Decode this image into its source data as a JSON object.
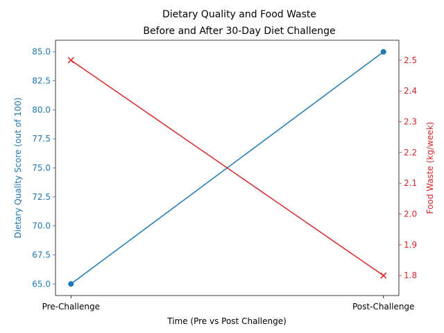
{
  "chart_data": {
    "type": "line",
    "title": "Dietary Quality and Food Waste",
    "subtitle": "Before and After 30-Day Diet Challenge",
    "xlabel": "Time (Pre vs Post Challenge)",
    "categories": [
      "Pre-Challenge",
      "Post-Challenge"
    ],
    "y_left": {
      "label": "Dietary Quality Score (out of 100)",
      "color": "#1f77b4",
      "ylim": [
        64.0,
        86.0
      ],
      "ticks": [
        "65.0",
        "67.5",
        "70.0",
        "72.5",
        "75.0",
        "77.5",
        "80.0",
        "82.5",
        "85.0"
      ]
    },
    "y_right": {
      "label": "Food Waste (kg/week)",
      "color": "#d62728",
      "ylim": [
        1.735,
        2.565
      ],
      "ticks": [
        "1.8",
        "1.9",
        "2.0",
        "2.1",
        "2.2",
        "2.3",
        "2.4",
        "2.5"
      ]
    },
    "series": [
      {
        "values": [
          65,
          85
        ],
        "axis": "left",
        "marker": "circle",
        "color": "#1f77b4"
      },
      {
        "values": [
          2.5,
          1.8
        ],
        "axis": "right",
        "marker": "x",
        "color": "#d62728"
      }
    ],
    "grid": false,
    "legend": "none"
  }
}
